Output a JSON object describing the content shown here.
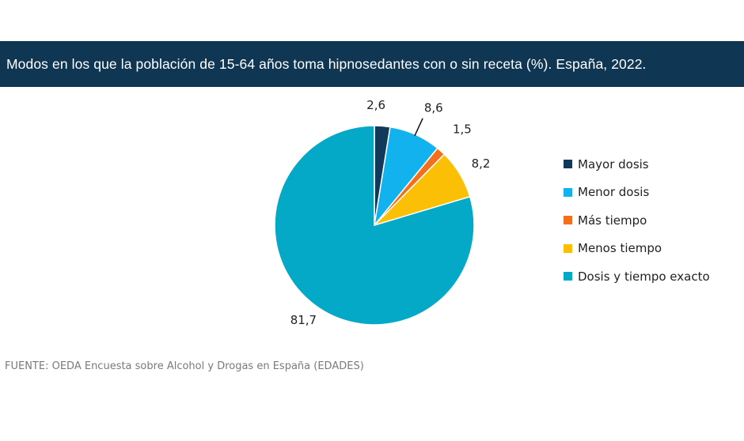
{
  "header": {
    "title": "Modos en los que la población de 15-64 años toma hipnosedantes con o sin receta (%). España, 2022."
  },
  "chart_data": {
    "type": "pie",
    "title": "Modos en los que la población de 15-64 años toma hipnosedantes con o sin receta (%). España, 2022.",
    "start_angle_deg": 0,
    "direction": "clockwise",
    "legend_position": "right",
    "categories": [
      "Mayor dosis",
      "Menor dosis",
      "Más tiempo",
      "Menos tiempo",
      "Dosis y tiempo exacto"
    ],
    "values": [
      2.6,
      8.6,
      1.5,
      8.2,
      81.7
    ],
    "value_labels": [
      "2,6",
      "8,6",
      "1,5",
      "8,2",
      "81,7"
    ],
    "colors": [
      "#12395a",
      "#12b2ee",
      "#f36f1c",
      "#fbbf05",
      "#04a9c7"
    ]
  },
  "footer": {
    "source": "FUENTE: OEDA Encuesta sobre Alcohol y Drogas en España (EDADES)"
  }
}
